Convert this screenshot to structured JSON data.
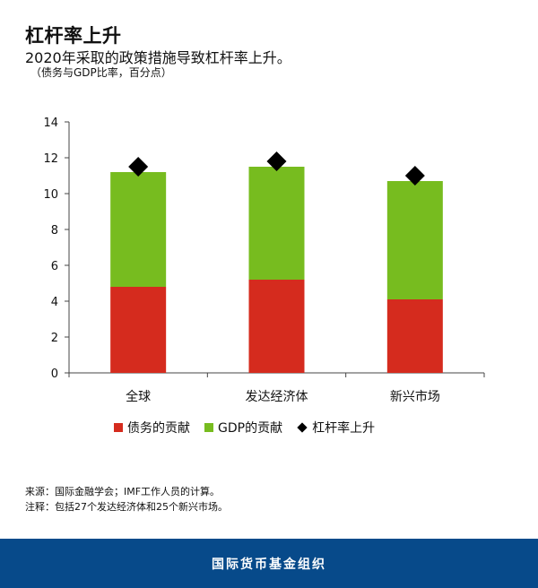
{
  "title": "杠杆率上升",
  "subtitle": "2020年采取的政策措施导致杠杆率上升。",
  "unit_note": "（债务与GDP比率，百分点）",
  "chart_data": {
    "type": "bar",
    "stacked": true,
    "categories": [
      "全球",
      "发达经济体",
      "新兴市场"
    ],
    "series": [
      {
        "name": "债务的贡献",
        "color": "#d52b1e",
        "values": [
          4.8,
          5.2,
          4.1
        ]
      },
      {
        "name": "GDP的贡献",
        "color": "#77bc1f",
        "values": [
          6.4,
          6.3,
          6.6
        ]
      }
    ],
    "markers": {
      "name": "杠杆率上升",
      "color": "#000000",
      "shape": "diamond",
      "values": [
        11.5,
        11.8,
        11.0
      ]
    },
    "ylim": [
      0,
      14
    ],
    "yticks": [
      "0",
      "2",
      "4",
      "6",
      "8",
      "10",
      "12",
      "14"
    ],
    "grid": false,
    "legend_position": "bottom"
  },
  "notes": [
    "来源：国际金融学会；IMF工作人员的计算。",
    "注释：包括27个发达经济体和25个新兴市场。"
  ],
  "footer": "国际货币基金组织"
}
